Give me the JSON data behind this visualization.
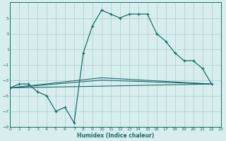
{
  "xlabel": "Humidex (Indice chaleur)",
  "bg_color": "#d8eeee",
  "grid_color": "#aacccc",
  "line_color": "#1a6b6b",
  "xlim": [
    0,
    23
  ],
  "ylim": [
    -9,
    7
  ],
  "yticks": [
    -9,
    -7,
    -5,
    -3,
    -1,
    1,
    3,
    5
  ],
  "xticks": [
    0,
    1,
    2,
    3,
    4,
    5,
    6,
    7,
    8,
    9,
    10,
    11,
    12,
    13,
    14,
    15,
    16,
    17,
    18,
    19,
    20,
    21,
    22,
    23
  ],
  "series1_x": [
    0,
    1,
    2,
    3,
    4,
    5,
    6,
    7,
    8,
    9,
    10,
    11,
    12,
    13,
    14,
    15,
    16,
    17,
    18,
    19,
    20,
    21,
    22
  ],
  "series1_y": [
    -4.0,
    -3.5,
    -3.5,
    -4.5,
    -5.0,
    -7.0,
    -6.5,
    -8.5,
    0.5,
    4.0,
    6.0,
    5.5,
    5.0,
    5.5,
    5.5,
    5.5,
    3.0,
    2.0,
    0.5,
    -0.5,
    -0.5,
    -1.5,
    -3.5
  ],
  "series2_x": [
    0,
    22
  ],
  "series2_y": [
    -4.0,
    -3.5
  ],
  "series3_x": [
    0,
    10,
    22
  ],
  "series3_y": [
    -4.0,
    -2.7,
    -3.5
  ],
  "series4_x": [
    0,
    10,
    22
  ],
  "series4_y": [
    -4.0,
    -3.0,
    -3.5
  ]
}
